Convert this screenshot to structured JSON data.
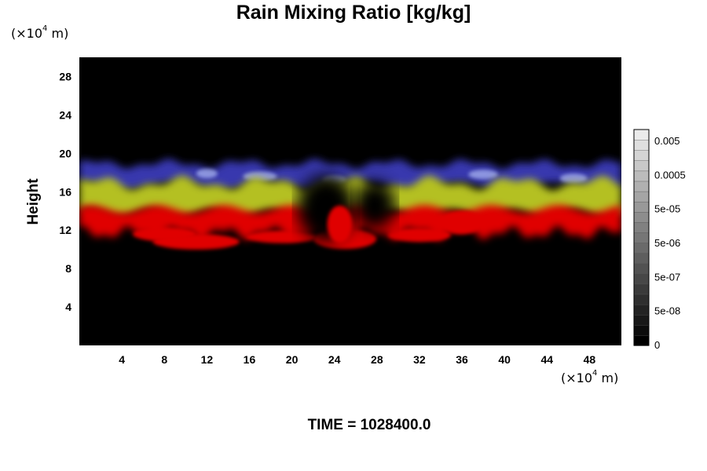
{
  "chart_data": {
    "type": "heatmap",
    "title": "Rain Mixing Ratio [kg/kg]",
    "ylabel": "Height",
    "x_unit": {
      "prefix": "(×10",
      "exp": "4",
      "suffix": " m)"
    },
    "y_unit": {
      "prefix": "(×10",
      "exp": "4",
      "suffix": " m)"
    },
    "xlim": [
      0,
      51
    ],
    "ylim": [
      0,
      30
    ],
    "x_ticks": [
      4,
      8,
      12,
      16,
      20,
      24,
      28,
      32,
      36,
      40,
      44,
      48
    ],
    "y_ticks": [
      4,
      8,
      12,
      16,
      20,
      24,
      28
    ],
    "colorbar": {
      "labels": [
        "0.005",
        "0.0005",
        "5e-05",
        "5e-06",
        "5e-07",
        "5e-08",
        "0"
      ],
      "levels": 21
    },
    "bands": [
      {
        "name": "red",
        "color": "#e00000",
        "y_range": [
          10,
          14.5
        ]
      },
      {
        "name": "yellow-green",
        "color": "#b4c020",
        "y_range": [
          13.5,
          17.5
        ]
      },
      {
        "name": "blue",
        "color": "#3a3ab8",
        "y_range": [
          16.5,
          20
        ]
      }
    ],
    "time_label": "TIME = 1028400.0"
  }
}
